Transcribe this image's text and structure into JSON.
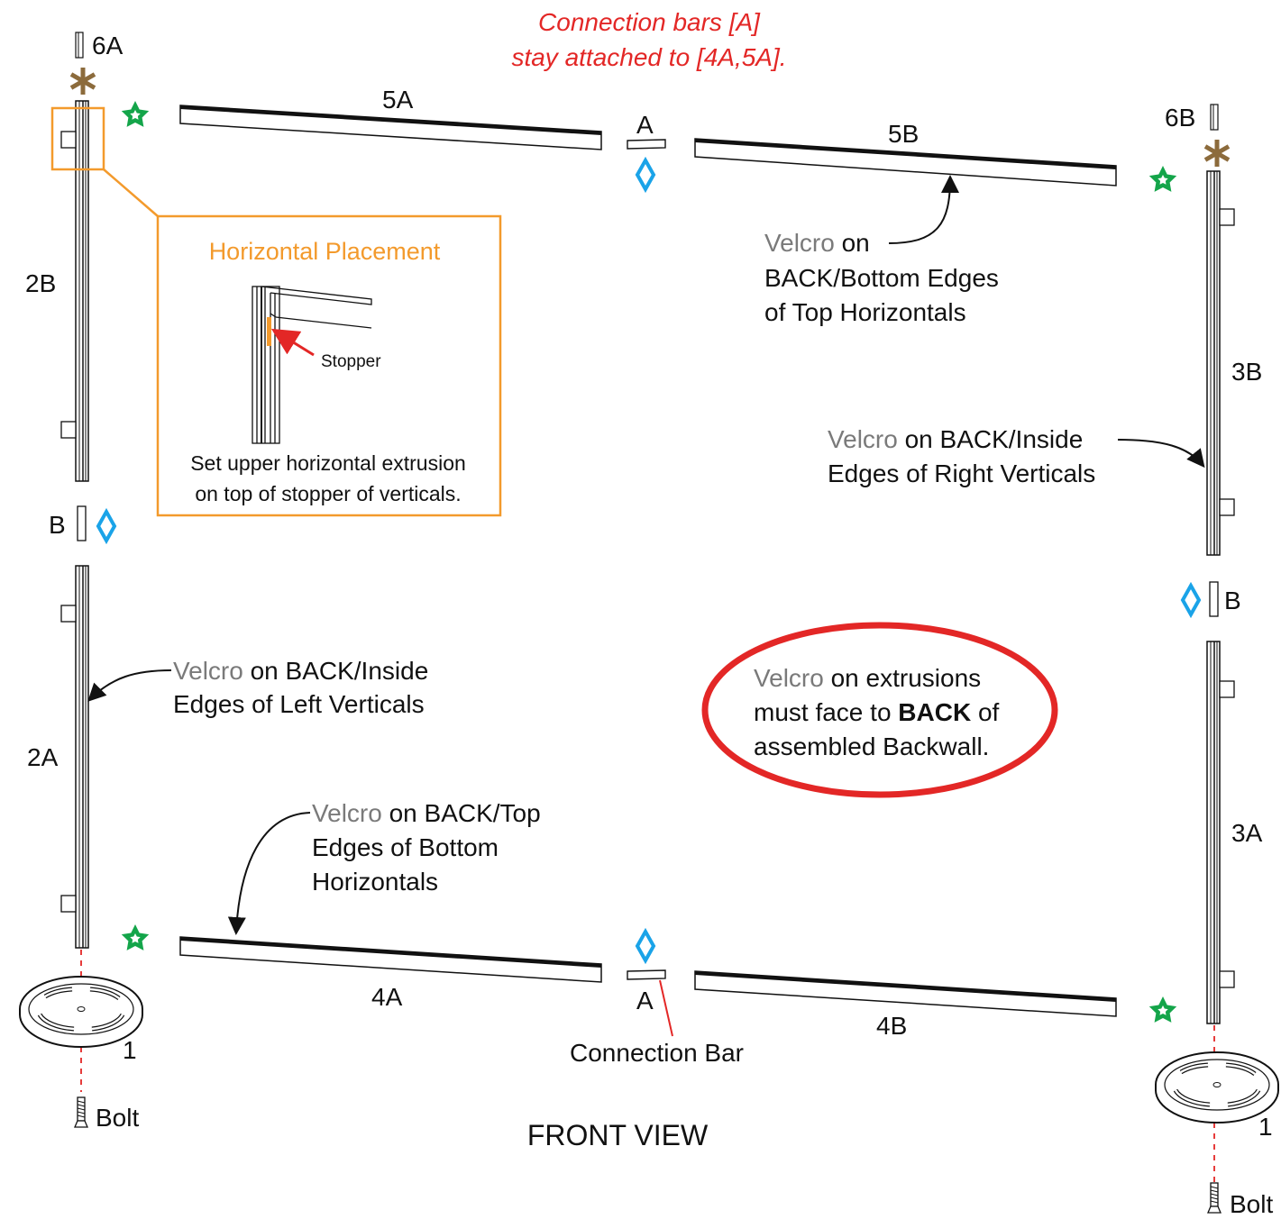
{
  "colors": {
    "red": "#e32726",
    "orange": "#f39a2c",
    "green": "#14a54a",
    "blue": "#1aa3e8",
    "brown": "#8c6b3c",
    "gray": "#7a7a7a"
  },
  "title": "FRONT VIEW",
  "connection_note": {
    "line1": "Connection bars [A]",
    "line2": "stay attached to [4A,5A]."
  },
  "parts": {
    "p6A": "6A",
    "p6B": "6B",
    "p5A": "5A",
    "p5B": "5B",
    "p4A": "4A",
    "p4B": "4B",
    "p2A": "2A",
    "p2B": "2B",
    "p3A": "3A",
    "p3B": "3B",
    "pA_top": "A",
    "pA_bottom": "A",
    "pB_left": "B",
    "pB_right": "B",
    "p1_left": "1",
    "p1_right": "1",
    "bolt_left": "Bolt",
    "bolt_right": "Bolt"
  },
  "connection_bar_label": "Connection Bar",
  "inset": {
    "title": "Horizontal Placement",
    "stopper": "Stopper",
    "caption1": "Set upper horizontal extrusion",
    "caption2": "on top of stopper of verticals."
  },
  "velcro_word": "Velcro",
  "notes": {
    "top": {
      "l1": " on",
      "l2": "BACK/Bottom Edges",
      "l3": "of Top Horizontals"
    },
    "right": {
      "l1": " on BACK/Inside",
      "l2": "Edges of Right Verticals"
    },
    "left": {
      "l1": " on BACK/Inside",
      "l2": "Edges of Left Verticals"
    },
    "bottom": {
      "l1": " on BACK/Top",
      "l2": "Edges of Bottom",
      "l3": "Horizontals"
    },
    "oval": {
      "l1": " on extrusions",
      "l2a": "must face to ",
      "l2b": "BACK",
      "l2c": " of",
      "l3": "assembled Backwall."
    }
  },
  "icons": [
    "star-icon",
    "diamond-icon",
    "asterisk-icon",
    "bolt-icon",
    "base-plate-icon",
    "end-cap-icon"
  ]
}
